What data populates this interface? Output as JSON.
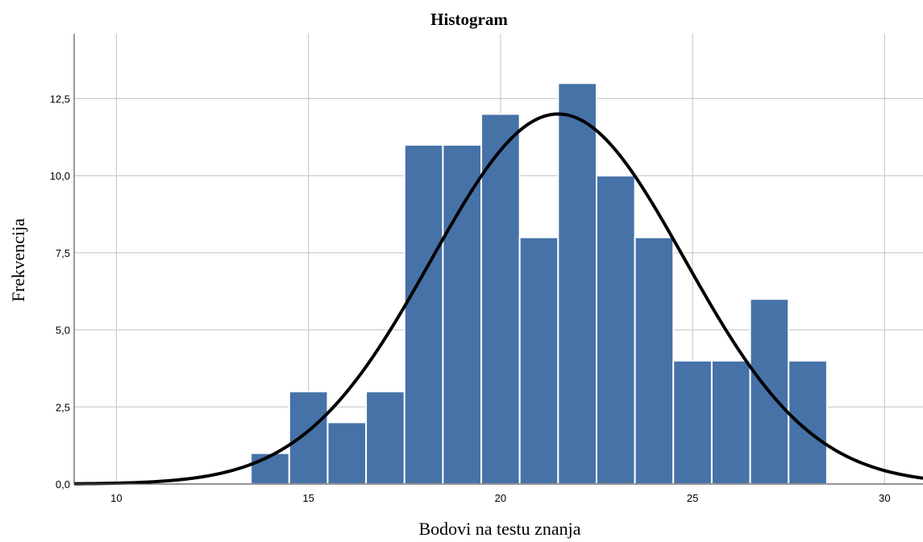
{
  "chart_data": {
    "type": "bar",
    "title": "Histogram",
    "xlabel": "Bodovi na testu znanja",
    "ylabel": "Frekvencija",
    "xlim": [
      8.9,
      31.0
    ],
    "ylim": [
      0,
      14.6
    ],
    "x_ticks": [
      10,
      15,
      20,
      25,
      30
    ],
    "x_tick_labels": [
      "10",
      "15",
      "20",
      "25",
      "30"
    ],
    "y_ticks": [
      0,
      2.5,
      5,
      7.5,
      10,
      12.5
    ],
    "y_tick_labels": [
      "0,0",
      "2,5",
      "5,0",
      "7,5",
      "10,0",
      "12,5"
    ],
    "grid": true,
    "bins": [
      {
        "start": 13.5,
        "end": 14.5,
        "value": 1
      },
      {
        "start": 14.5,
        "end": 15.5,
        "value": 3
      },
      {
        "start": 15.5,
        "end": 16.5,
        "value": 2
      },
      {
        "start": 16.5,
        "end": 17.5,
        "value": 3
      },
      {
        "start": 17.5,
        "end": 18.5,
        "value": 11
      },
      {
        "start": 18.5,
        "end": 19.5,
        "value": 11
      },
      {
        "start": 19.5,
        "end": 20.5,
        "value": 12
      },
      {
        "start": 20.5,
        "end": 21.5,
        "value": 8
      },
      {
        "start": 21.5,
        "end": 22.5,
        "value": 13
      },
      {
        "start": 22.5,
        "end": 23.5,
        "value": 10
      },
      {
        "start": 23.5,
        "end": 24.5,
        "value": 8
      },
      {
        "start": 24.5,
        "end": 25.5,
        "value": 4
      },
      {
        "start": 25.5,
        "end": 26.5,
        "value": 4
      },
      {
        "start": 26.5,
        "end": 27.5,
        "value": 6
      },
      {
        "start": 27.5,
        "end": 28.5,
        "value": 4
      }
    ],
    "normal_curve": {
      "mean": 21.5,
      "std_dev": 3.3,
      "peak": 12.0
    },
    "colors": {
      "bars": "#4672a8",
      "curve": "#000000",
      "grid": "#cccccc"
    }
  }
}
